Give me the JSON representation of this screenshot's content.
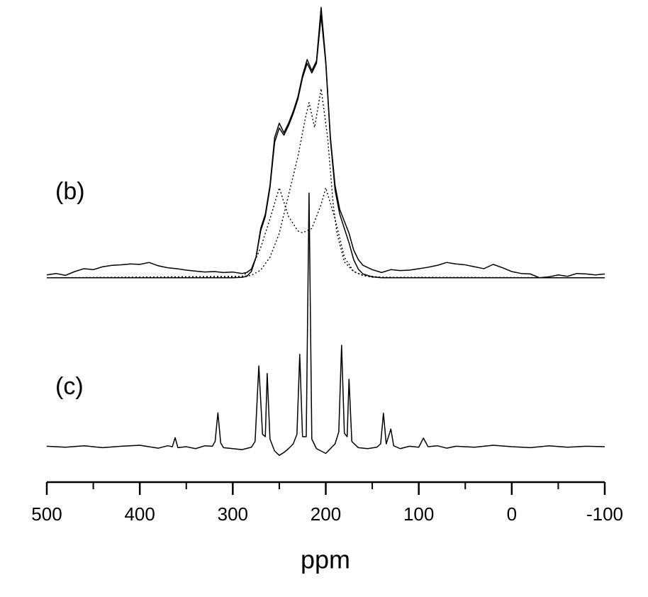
{
  "chart_data": {
    "type": "line",
    "x_label": "ppm",
    "annotations": [
      "(b)",
      "(c)"
    ],
    "xlim": [
      500,
      -100
    ],
    "xticks": [
      500,
      400,
      300,
      200,
      100,
      0,
      -100
    ],
    "xminorticks": [
      450,
      350,
      250,
      150,
      50,
      -50
    ],
    "ylim": [
      0,
      100
    ],
    "series": [
      {
        "color": "#000000",
        "style": "solid",
        "x": [
          500,
          490,
          480,
          470,
          460,
          450,
          440,
          430,
          420,
          410,
          400,
          390,
          380,
          370,
          360,
          350,
          340,
          330,
          320,
          310,
          300,
          290,
          285,
          280,
          275,
          270,
          265,
          260,
          255,
          250,
          245,
          240,
          235,
          230,
          225,
          220,
          215,
          210,
          205,
          200,
          195,
          190,
          185,
          180,
          175,
          170,
          165,
          160,
          150,
          140,
          130,
          120,
          110,
          100,
          90,
          80,
          70,
          60,
          50,
          40,
          30,
          20,
          10,
          0,
          -10,
          -20,
          -30,
          -40,
          -50,
          -60,
          -70,
          -80,
          -90,
          -100
        ],
        "values": [
          43.3,
          43.6,
          43.2,
          44.0,
          44.6,
          44.4,
          45.0,
          45.3,
          45.4,
          45.6,
          45.5,
          45.9,
          45.2,
          44.8,
          44.6,
          44.3,
          44.1,
          43.9,
          44.0,
          43.8,
          43.9,
          43.6,
          43.8,
          44.5,
          47,
          53,
          56,
          62,
          72,
          75,
          73,
          75,
          77.5,
          80.5,
          85,
          88.3,
          86,
          88,
          99.2,
          88,
          72,
          62,
          57,
          54.5,
          52,
          48.5,
          46.5,
          45.3,
          44.4,
          43.8,
          44.4,
          44.2,
          44.3,
          44.6,
          44.9,
          45.3,
          45.9,
          45.6,
          45.4,
          45.0,
          44.6,
          45.5,
          44.8,
          44.0,
          43.6,
          43.5,
          42.7,
          42.9,
          43.3,
          43.0,
          43.6,
          43.5,
          43.3,
          43.5
        ]
      },
      {
        "color": "#000000",
        "style": "solid",
        "x": [
          500,
          300,
          290,
          285,
          280,
          275,
          270,
          265,
          260,
          255,
          250,
          245,
          240,
          235,
          230,
          225,
          220,
          215,
          210,
          205,
          200,
          195,
          190,
          185,
          180,
          175,
          170,
          165,
          160,
          150,
          140,
          -100
        ],
        "values": [
          42.7,
          42.7,
          42.8,
          43.0,
          44.0,
          47,
          52.5,
          55.5,
          61.5,
          71,
          74,
          72.5,
          74.5,
          77,
          80,
          84.5,
          87.5,
          85.5,
          87.5,
          97.5,
          87.5,
          71.5,
          61,
          56,
          53,
          50,
          46.5,
          44.5,
          43.5,
          42.9,
          42.7,
          42.7
        ]
      },
      {
        "color": "#000000",
        "style": "dotted",
        "x": [
          500,
          300,
          280,
          270,
          260,
          250,
          240,
          230,
          222,
          218,
          212,
          205,
          198,
          192,
          188,
          180,
          170,
          160,
          140,
          -100
        ],
        "values": [
          42.7,
          42.8,
          43.2,
          44.3,
          47,
          52,
          60,
          68,
          76,
          79.3,
          74.1,
          82.2,
          72,
          58,
          52,
          46,
          44,
          43.2,
          42.8,
          42.7
        ]
      },
      {
        "color": "#000000",
        "style": "dotted",
        "x": [
          500,
          290,
          280,
          270,
          260,
          250,
          240,
          230,
          225,
          215,
          205,
          200,
          190,
          180,
          170,
          160,
          150,
          -100
        ],
        "values": [
          42.7,
          43,
          44.5,
          49,
          55,
          61.5,
          55.5,
          52.5,
          52.1,
          53,
          58,
          61.5,
          55,
          47,
          44,
          43.2,
          42.8,
          42.7
        ]
      },
      {
        "color": "#000000",
        "style": "solid",
        "x": [
          500,
          480,
          460,
          440,
          420,
          400,
          380,
          370,
          365,
          362,
          359,
          350,
          340,
          330,
          322,
          319,
          316,
          313,
          310,
          300,
          290,
          280,
          276,
          272,
          268,
          265,
          263,
          260,
          255,
          250,
          245,
          240,
          235,
          231,
          228,
          225,
          221,
          218,
          215,
          210,
          205,
          200,
          195,
          190,
          186,
          183,
          180,
          177,
          175,
          172,
          165,
          155,
          145,
          141,
          138,
          135,
          130,
          127,
          120,
          110,
          100,
          95,
          90,
          80,
          70,
          60,
          40,
          20,
          0,
          -20,
          -40,
          -60,
          -80,
          -100
        ],
        "values": [
          7.5,
          7.3,
          7.6,
          7.2,
          7.5,
          7.7,
          7.1,
          7.6,
          7.4,
          9.3,
          7.2,
          7.4,
          7.0,
          7.6,
          7.5,
          8.5,
          14.5,
          8.2,
          7.2,
          7.0,
          6.8,
          7.3,
          8.5,
          24.3,
          10,
          9.5,
          22.7,
          9.0,
          6.5,
          5.6,
          6.2,
          7.0,
          8.0,
          10,
          26.7,
          9.5,
          9.5,
          60.4,
          9.0,
          7.0,
          6.5,
          6.0,
          7.0,
          8.0,
          10.5,
          28.6,
          10.2,
          9.5,
          21.5,
          8.5,
          7.2,
          7.0,
          7.3,
          8.0,
          14.4,
          8.0,
          11.1,
          7.6,
          7.0,
          7.5,
          7.3,
          9.2,
          7.4,
          7.6,
          7.1,
          7.5,
          7.3,
          7.7,
          7.4,
          7.2,
          7.6,
          7.3,
          7.5,
          7.4
        ]
      }
    ]
  }
}
